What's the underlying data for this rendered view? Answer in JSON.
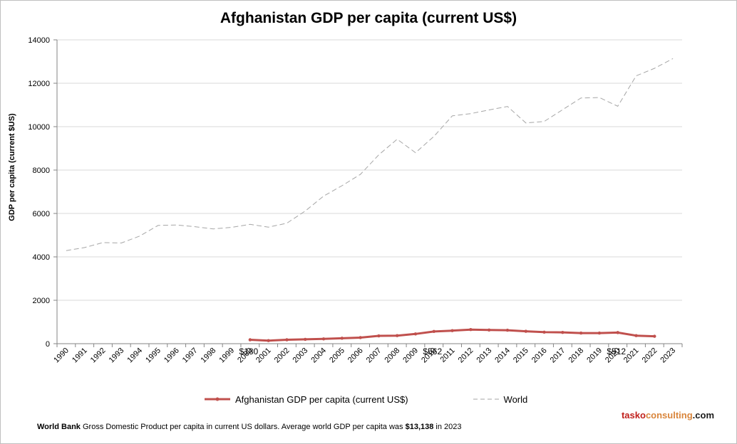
{
  "chart_data": {
    "type": "line",
    "title": "Afghanistan GDP per capita (current US$)",
    "ylabel": "GDP per capita (current $US)",
    "xlabel": "",
    "ylim": [
      0,
      14000
    ],
    "yticks": [
      0,
      2000,
      4000,
      6000,
      8000,
      10000,
      12000,
      14000
    ],
    "grid": true,
    "legend_position": "bottom",
    "categories": [
      "1990",
      "1991",
      "1992",
      "1993",
      "1994",
      "1995",
      "1996",
      "1997",
      "1998",
      "1999",
      "2000",
      "2001",
      "2002",
      "2003",
      "2004",
      "2005",
      "2006",
      "2007",
      "2008",
      "2009",
      "2010",
      "2011",
      "2012",
      "2013",
      "2014",
      "2015",
      "2016",
      "2017",
      "2018",
      "2019",
      "2020",
      "2021",
      "2022",
      "2023"
    ],
    "series": [
      {
        "name": "Afghanistan GDP per capita (current US$)",
        "color": "#c0504d",
        "style": "solid",
        "values": [
          null,
          null,
          null,
          null,
          null,
          null,
          null,
          null,
          null,
          null,
          180,
          140,
          180,
          200,
          220,
          250,
          280,
          360,
          370,
          450,
          562,
          600,
          650,
          630,
          620,
          570,
          530,
          520,
          490,
          490,
          512,
          370,
          340,
          null
        ]
      },
      {
        "name": "World",
        "color": "#a6a6a6",
        "style": "dashed",
        "values": [
          4290,
          4430,
          4660,
          4640,
          4960,
          5450,
          5470,
          5390,
          5290,
          5360,
          5500,
          5370,
          5550,
          6110,
          6800,
          7280,
          7800,
          8700,
          9420,
          8800,
          9550,
          10500,
          10600,
          10770,
          10930,
          10170,
          10240,
          10780,
          11320,
          11340,
          10940,
          12340,
          12690,
          13138
        ]
      }
    ],
    "annotations": [
      {
        "label": "$180",
        "category": "2000"
      },
      {
        "label": "$562",
        "category": "2010"
      },
      {
        "label": "$512",
        "category": "2020"
      }
    ]
  },
  "footnote": {
    "source": "World Bank",
    "text": " Gross Domestic Product per capita in current US dollars.  Average world GDP per capita was ",
    "highlight": "$13,138",
    "suffix": " in 2023"
  },
  "brand": {
    "part1": "tasko",
    "part2": "consulting",
    "part3": ".com"
  }
}
